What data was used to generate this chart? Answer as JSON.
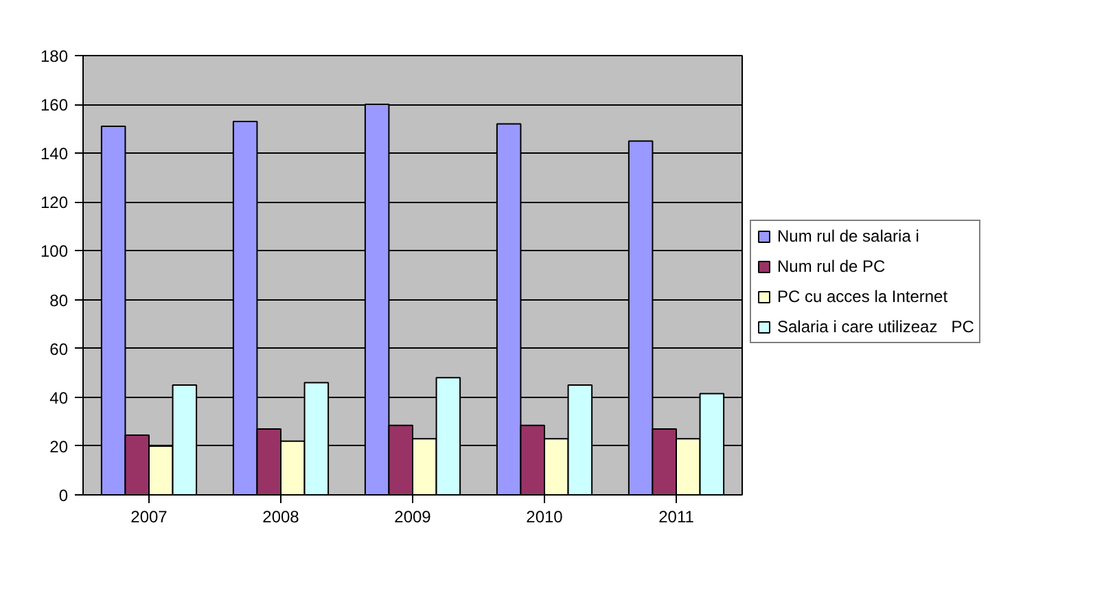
{
  "chart_data": {
    "type": "bar",
    "categories": [
      "2007",
      "2008",
      "2009",
      "2010",
      "2011"
    ],
    "series": [
      {
        "name": "Num rul de salaria i",
        "color": "#9999ff",
        "values": [
          151,
          153,
          160,
          152,
          145
        ]
      },
      {
        "name": "Num rul de PC",
        "color": "#993366",
        "values": [
          24.5,
          27,
          28.5,
          28.5,
          27
        ]
      },
      {
        "name": "PC cu acces la Internet",
        "color": "#ffffcc",
        "values": [
          20,
          22,
          23,
          23,
          23
        ]
      },
      {
        "name": "Salaria i care utilizeaz   PC",
        "color": "#ccffff",
        "values": [
          45,
          46,
          48,
          45,
          41.5
        ]
      }
    ],
    "ylim": [
      0,
      180
    ],
    "yticks": [
      0,
      20,
      40,
      60,
      80,
      100,
      120,
      140,
      160,
      180
    ],
    "grid": "y",
    "legend": "right"
  }
}
